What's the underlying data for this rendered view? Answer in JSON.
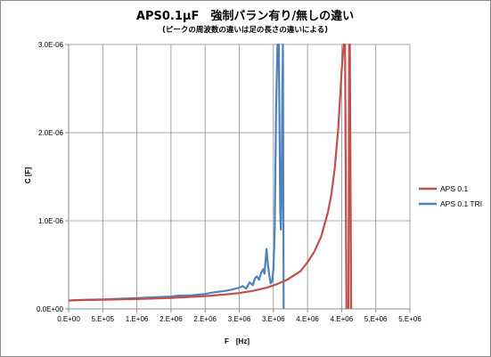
{
  "chart_data": {
    "type": "line",
    "title": "APS0.1μF　強制バラン有り/無しの違い",
    "subtitle": "(ピークの周波数の違いは足の長さの違いによる)",
    "xlabel": "F　[Hz]",
    "ylabel": "C [F]",
    "xlim": [
      0,
      5000000
    ],
    "ylim": [
      0,
      3e-06
    ],
    "x_ticks": [
      "0.E+00",
      "5.E+05",
      "1.E+06",
      "2.E+06",
      "2.E+06",
      "3.E+06",
      "3.E+06",
      "4.E+06",
      "4.E+06",
      "5.E+06",
      "5.E+06"
    ],
    "x_tick_values": [
      0,
      500000,
      1000000,
      1500000,
      2000000,
      2500000,
      3000000,
      3500000,
      4000000,
      4500000,
      5000000
    ],
    "y_ticks": [
      "0.0E+00",
      "1.0E-06",
      "2.0E-06",
      "3.0E-06"
    ],
    "y_tick_values": [
      0,
      1e-06,
      2e-06,
      3e-06
    ],
    "grid": true,
    "legend_position": "right",
    "series": [
      {
        "name": "APS 0.1",
        "color": "#c0504d",
        "x": [
          0,
          100000,
          500000,
          1000000,
          1500000,
          2000000,
          2300000,
          2500000,
          2700000,
          2900000,
          3050000,
          3200000,
          3400000,
          3500000,
          3600000,
          3700000,
          3800000,
          3850000,
          3900000,
          3950000,
          4000000,
          4030000,
          4050000,
          4070000,
          4090000,
          4100000,
          4110000,
          4120000,
          4140000,
          4160000
        ],
        "y": [
          9.5e-08,
          1e-07,
          1.05e-07,
          1.12e-07,
          1.25e-07,
          1.45e-07,
          1.65e-07,
          1.8e-07,
          2.05e-07,
          2.4e-07,
          2.8e-07,
          3.3e-07,
          4.3e-07,
          5.3e-07,
          6.5e-07,
          8.2e-07,
          1.1e-06,
          1.3e-06,
          1.6e-06,
          2.05e-06,
          2.7e-06,
          3e-06,
          3e-06,
          0,
          0,
          0,
          3e-06,
          3e-06,
          0,
          0
        ]
      },
      {
        "name": "APS 0.1 TRI",
        "color": "#4f81bd",
        "x": [
          0,
          100000,
          500000,
          1000000,
          1200000,
          1500000,
          1600000,
          1800000,
          2000000,
          2100000,
          2200000,
          2300000,
          2400000,
          2500000,
          2550000,
          2600000,
          2650000,
          2700000,
          2730000,
          2760000,
          2790000,
          2820000,
          2850000,
          2870000,
          2900000,
          2920000,
          2940000,
          2960000,
          2980000,
          3000000,
          3020000,
          3040000,
          3060000,
          3080000,
          3100000,
          3110000,
          3120000,
          3130000,
          3140000,
          3150000,
          3160000
        ],
        "y": [
          9.5e-08,
          1e-07,
          1.08e-07,
          1.22e-07,
          1.3e-07,
          1.4e-07,
          1.5e-07,
          1.55e-07,
          1.7e-07,
          1.85e-07,
          1.95e-07,
          2.05e-07,
          2.2e-07,
          2.4e-07,
          2.6e-07,
          2.3e-07,
          3e-07,
          2.7e-07,
          3.5e-07,
          3.7e-07,
          3.3e-07,
          4.1e-07,
          4.5e-07,
          4e-07,
          6.8e-07,
          5e-07,
          3.8e-07,
          2.9e-07,
          3.1e-07,
          4.5e-07,
          9e-07,
          2.3e-06,
          3e-06,
          3e-06,
          1.1e-06,
          9e-07,
          1.35e-06,
          2.4e-06,
          3e-06,
          0,
          0
        ]
      }
    ]
  }
}
